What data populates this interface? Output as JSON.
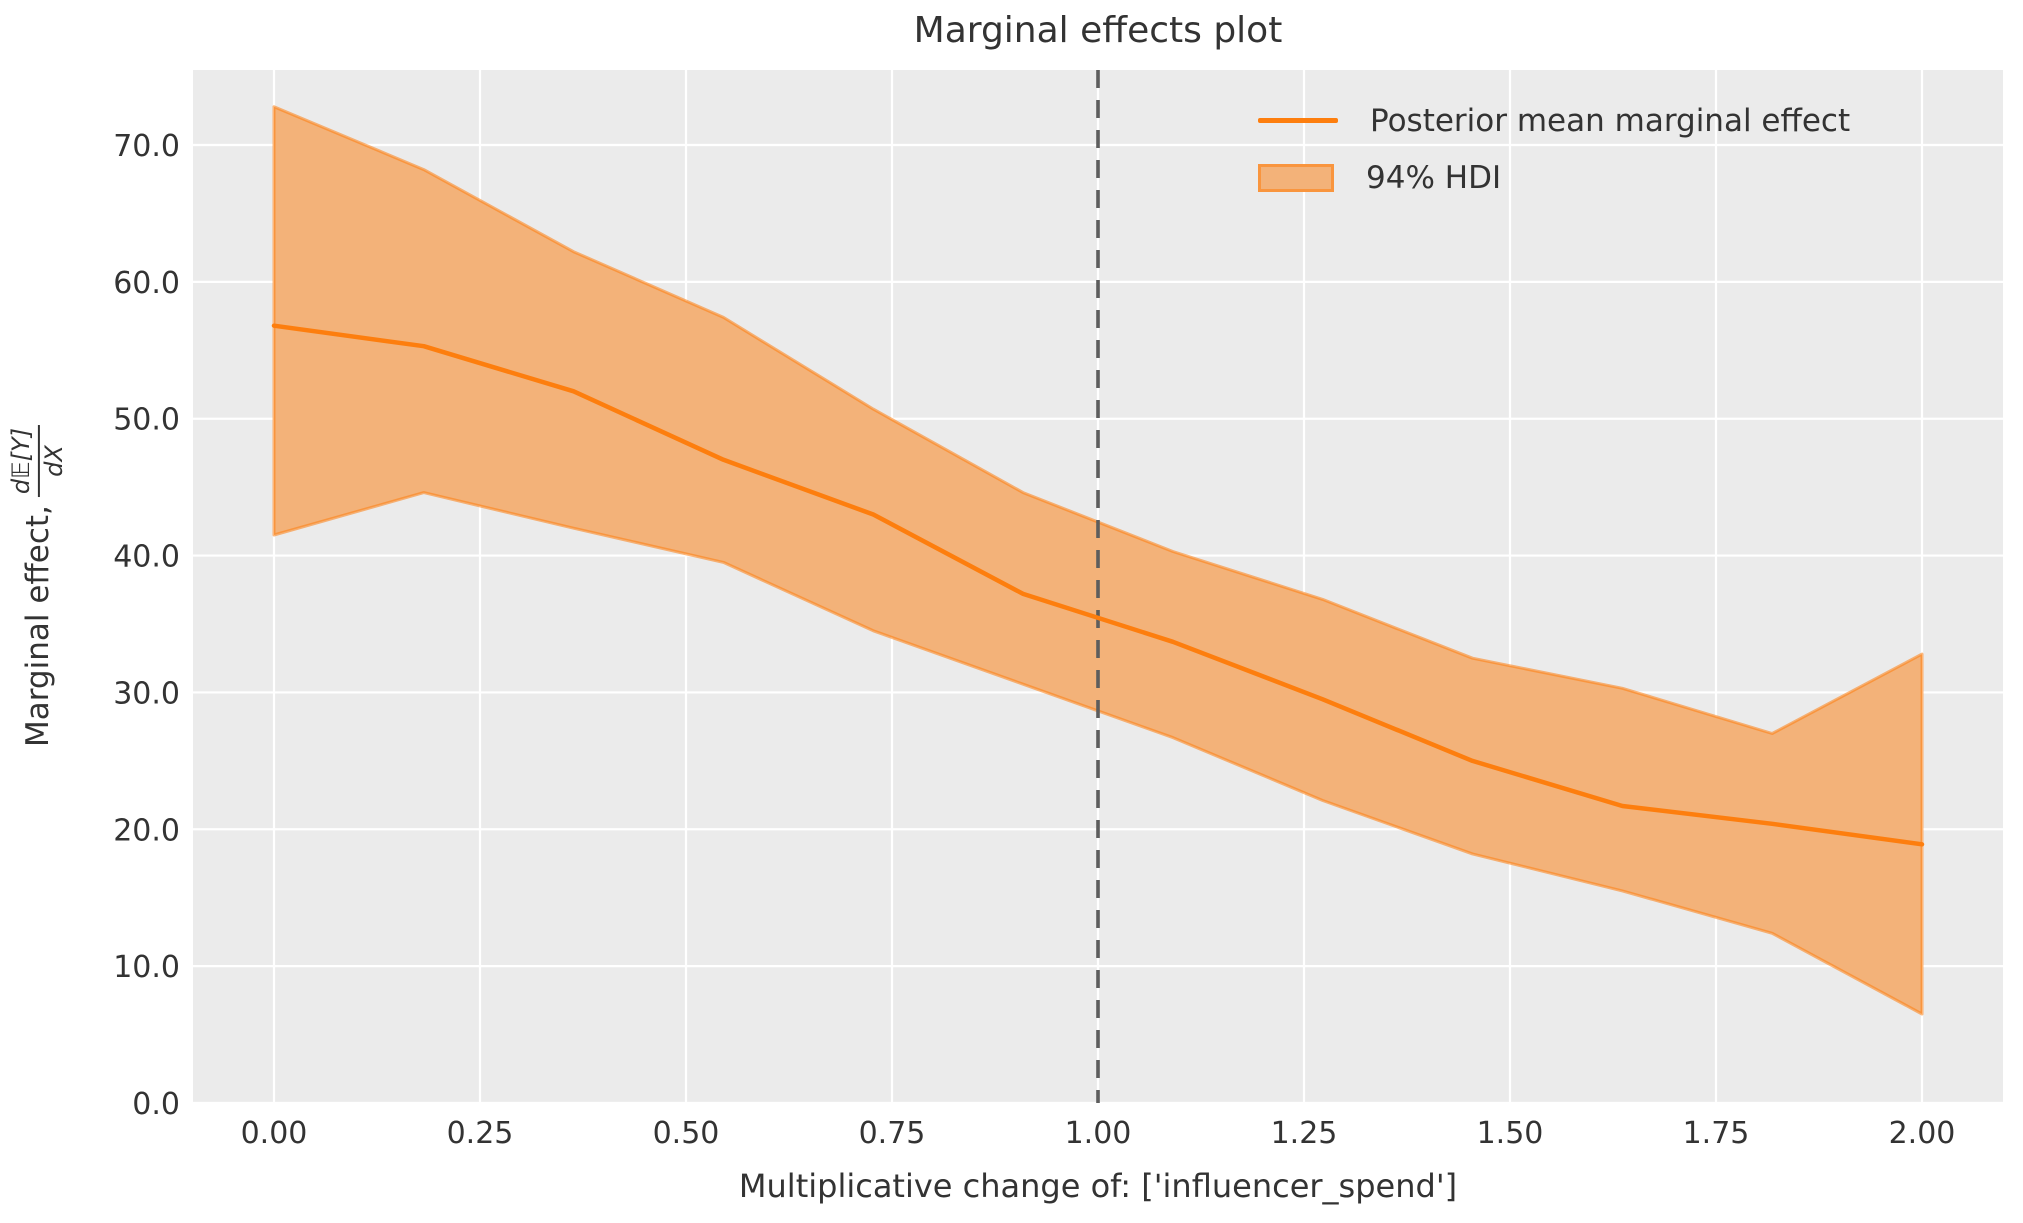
{
  "title": "Marginal effects plot",
  "xlabel": "Multiplicative change of: ['influencer_spend']",
  "ylabel": {
    "prefix": "Marginal effect,",
    "frac_num": "d𝔼[Y]",
    "frac_den": "dX"
  },
  "legend": {
    "items": [
      {
        "swatch": "line-swatch",
        "label": "Posterior mean marginal effect"
      },
      {
        "swatch": "patch-swatch",
        "label": "94% HDI"
      }
    ]
  },
  "colors": {
    "mean_line": "#fd7e0e",
    "band_fill": "#f3b279",
    "band_edge": "rgba(253,126,14,0.55)",
    "vline": "#5d5d5d",
    "plot_bg": "#ebebeb",
    "grid": "#ffffff",
    "text": "#333333"
  },
  "chart_data": {
    "type": "line",
    "title": "Marginal effects plot",
    "xlabel": "Multiplicative change of: ['influencer_spend']",
    "ylabel": "Marginal effect, d𝔼[Y]/dX",
    "x": [
      0.0,
      0.1818,
      0.3636,
      0.5455,
      0.7273,
      0.9091,
      1.0909,
      1.2727,
      1.4545,
      1.6364,
      1.8182,
      2.0
    ],
    "series": [
      {
        "name": "Posterior mean marginal effect",
        "type": "line",
        "values": [
          56.8,
          55.3,
          52.0,
          47.0,
          43.0,
          37.2,
          33.7,
          29.5,
          25.0,
          21.7,
          20.4,
          18.9
        ]
      },
      {
        "name": "94% HDI",
        "type": "band",
        "upper": [
          72.8,
          68.2,
          62.2,
          57.4,
          50.7,
          44.6,
          40.3,
          36.8,
          32.5,
          30.3,
          27.0,
          32.8
        ],
        "lower": [
          41.5,
          44.6,
          42.0,
          39.5,
          34.5,
          30.6,
          26.7,
          22.1,
          18.2,
          15.5,
          12.4,
          6.5
        ]
      }
    ],
    "vline_x": 1.0,
    "xticks": [
      0.0,
      0.25,
      0.5,
      0.75,
      1.0,
      1.25,
      1.5,
      1.75,
      2.0
    ],
    "xtick_labels": [
      "0.00",
      "0.25",
      "0.50",
      "0.75",
      "1.00",
      "1.25",
      "1.50",
      "1.75",
      "2.00"
    ],
    "yticks": [
      0,
      10,
      20,
      30,
      40,
      50,
      60,
      70
    ],
    "ytick_labels": [
      "0.0",
      "10.0",
      "20.0",
      "30.0",
      "40.0",
      "50.0",
      "60.0",
      "70.0"
    ],
    "xlim": [
      -0.098,
      2.098
    ],
    "ylim": [
      0.0,
      75.5
    ],
    "grid": true,
    "legend_position": "upper right"
  }
}
